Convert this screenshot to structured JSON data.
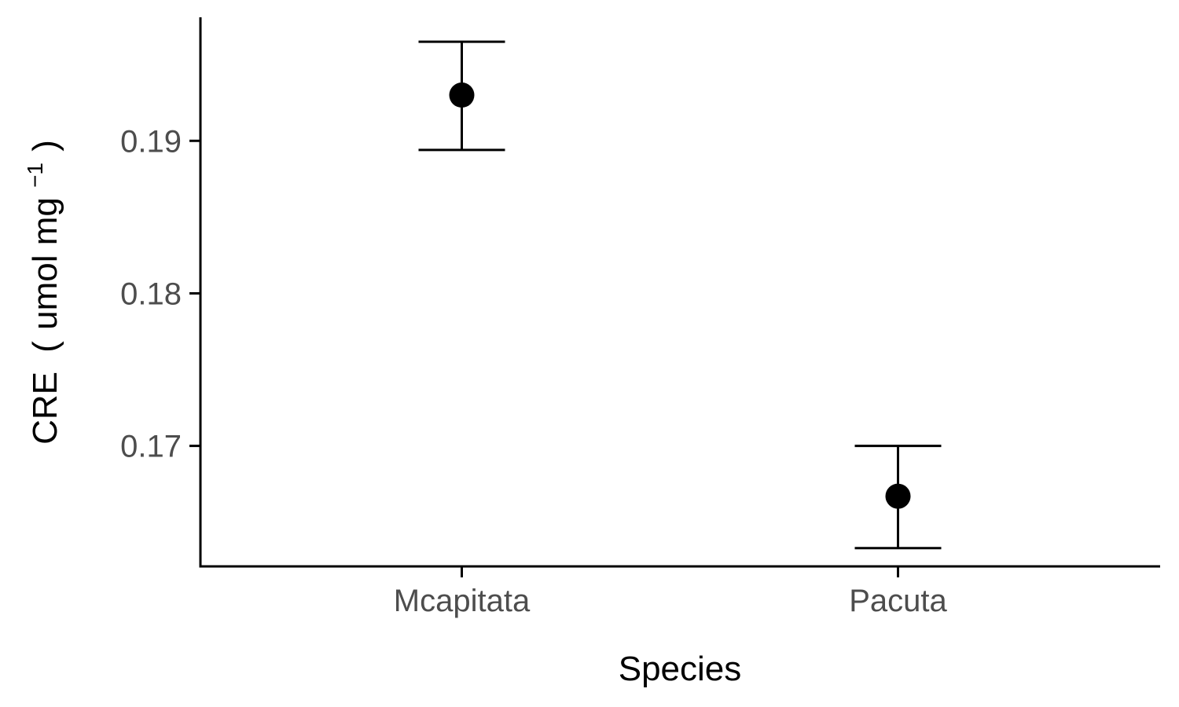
{
  "chart_data": {
    "type": "scatter",
    "xlabel": "Species",
    "ylabel": {
      "prefix": "CRE",
      "paren_open": "(",
      "unit": "umol mg",
      "superscript": "−1",
      "paren_close": ")"
    },
    "categories": [
      "Mcapitata",
      "Pacuta"
    ],
    "series": [
      {
        "values": [
          0.193,
          0.1667
        ],
        "error_low": [
          0.1894,
          0.1633
        ],
        "error_high": [
          0.1965,
          0.17
        ]
      }
    ],
    "ylim": [
      0.1621,
      0.1981
    ],
    "yticks": [
      0.17,
      0.18,
      0.19
    ],
    "ytick_labels": [
      "0.17",
      "0.18",
      "0.19"
    ],
    "grid": false,
    "legend": "none",
    "colors": {
      "point": "#000000",
      "axis": "#000000",
      "tick_text": "#4d4d4d",
      "background": "#ffffff"
    }
  }
}
